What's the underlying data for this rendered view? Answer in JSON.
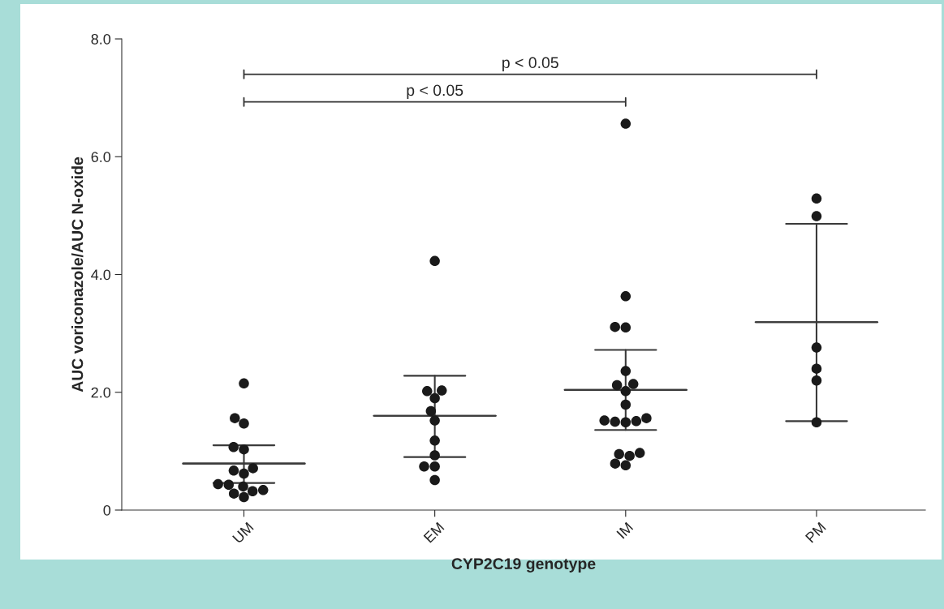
{
  "chart_data": {
    "type": "scatter",
    "categories": [
      "UM",
      "EM",
      "IM",
      "PM"
    ],
    "xlabel": "CYP2C19 genotype",
    "ylabel": "AUC voriconazole/AUC N-oxide",
    "ylim": [
      0,
      8
    ],
    "yticks": [
      0,
      {
        "value": 2,
        "label": "2.0"
      },
      {
        "value": 4,
        "label": "4.0"
      },
      {
        "value": 6,
        "label": "6.0"
      },
      {
        "value": 8,
        "label": "8.0"
      }
    ],
    "grid": false,
    "legend": false,
    "marker": "circle",
    "series": [
      {
        "color": "#1a1a1a",
        "x": [
          "UM",
          "UM",
          "UM",
          "UM",
          "UM",
          "UM",
          "UM",
          "UM",
          "UM",
          "UM",
          "UM",
          "UM",
          "UM",
          "UM",
          "UM",
          "EM",
          "EM",
          "EM",
          "EM",
          "EM",
          "EM",
          "EM",
          "EM",
          "EM",
          "EM",
          "EM",
          "IM",
          "IM",
          "IM",
          "IM",
          "IM",
          "IM",
          "IM",
          "IM",
          "IM",
          "IM",
          "IM",
          "IM",
          "IM",
          "IM",
          "IM",
          "IM",
          "IM",
          "IM",
          "IM",
          "PM",
          "PM",
          "PM",
          "PM",
          "PM",
          "PM"
        ],
        "values": [
          2.15,
          1.56,
          1.47,
          1.03,
          1.07,
          0.67,
          0.71,
          0.62,
          0.44,
          0.4,
          0.32,
          0.22,
          0.28,
          0.34,
          0.43,
          4.23,
          2.03,
          2.02,
          1.9,
          1.68,
          1.52,
          1.18,
          0.93,
          0.74,
          0.74,
          0.51,
          6.56,
          3.63,
          3.11,
          3.1,
          2.36,
          2.14,
          2.12,
          2.02,
          1.79,
          1.52,
          1.5,
          1.49,
          1.51,
          1.56,
          0.97,
          0.92,
          0.76,
          0.79,
          0.95,
          5.29,
          4.99,
          2.76,
          2.4,
          2.2,
          1.49
        ]
      },
      {
        "type": "box",
        "color": "#3a3a3a",
        "boxes": [
          {
            "low": 0.46,
            "q1": 0.79,
            "median": 0.79,
            "q3": 0.79,
            "high": 1.1
          },
          {
            "low": 0.9,
            "q1": 1.6,
            "median": 1.6,
            "q3": 1.6,
            "high": 2.28
          },
          {
            "low": 1.36,
            "q1": 2.04,
            "median": 2.04,
            "q3": 2.04,
            "high": 2.72
          },
          {
            "low": 1.51,
            "q1": 3.19,
            "median": 3.19,
            "q3": 3.19,
            "high": 4.86
          }
        ]
      }
    ],
    "annotations": [
      "p < 0.05",
      "p < 0.05"
    ]
  }
}
